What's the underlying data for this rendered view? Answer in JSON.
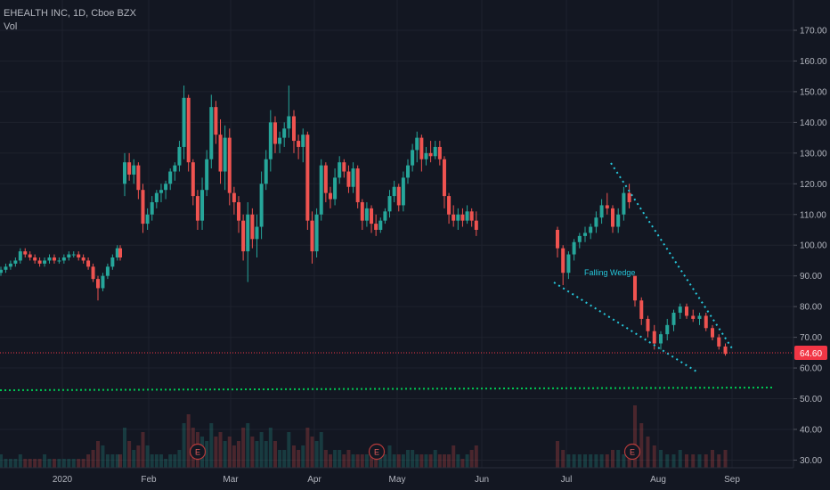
{
  "header": {
    "title": "EHEALTH INC, 1D, Cboe BZX",
    "indicator": "Vol"
  },
  "colors": {
    "background": "#131722",
    "grid": "#1e222d",
    "up": "#26a69a",
    "down": "#ef5350",
    "text": "#b2b5be",
    "pattern": "#26c6da",
    "support": "#00c853",
    "price_line": "#f23645"
  },
  "price_label": "64.60",
  "annotation": "Falling Wedge",
  "earnings_markers": [
    {
      "label": "E",
      "date": "Feb 20"
    },
    {
      "label": "E",
      "date": "Apr 30"
    },
    {
      "label": "E",
      "date": "Jul 23"
    }
  ],
  "chart_data": {
    "type": "candlestick",
    "y_axis": {
      "ticks": [
        "170.00",
        "160.00",
        "150.00",
        "140.00",
        "130.00",
        "120.00",
        "110.00",
        "100.00",
        "90.00",
        "80.00",
        "70.00",
        "60.00",
        "50.00",
        "40.00",
        "30.00"
      ],
      "range": [
        27,
        177
      ]
    },
    "x_axis": {
      "ticks": [
        "2020",
        "Feb",
        "Mar",
        "Apr",
        "May",
        "Jun",
        "Jul",
        "Aug",
        "Sep"
      ]
    },
    "last_price": 64.6,
    "support_level": 52.5,
    "candles": [
      {
        "o": 91,
        "h": 93,
        "l": 90,
        "c": 92
      },
      {
        "o": 92,
        "h": 94,
        "l": 91,
        "c": 93
      },
      {
        "o": 93,
        "h": 95,
        "l": 92,
        "c": 94
      },
      {
        "o": 94,
        "h": 96,
        "l": 93,
        "c": 95
      },
      {
        "o": 95,
        "h": 99,
        "l": 94,
        "c": 98
      },
      {
        "o": 98,
        "h": 99,
        "l": 96,
        "c": 97
      },
      {
        "o": 97,
        "h": 98,
        "l": 95,
        "c": 96
      },
      {
        "o": 96,
        "h": 97,
        "l": 94,
        "c": 95
      },
      {
        "o": 95,
        "h": 96,
        "l": 93,
        "c": 94
      },
      {
        "o": 94,
        "h": 96,
        "l": 93,
        "c": 95
      },
      {
        "o": 95,
        "h": 97,
        "l": 94,
        "c": 96
      },
      {
        "o": 96,
        "h": 97,
        "l": 94,
        "c": 95
      },
      {
        "o": 95,
        "h": 96,
        "l": 94,
        "c": 95
      },
      {
        "o": 95,
        "h": 97,
        "l": 94,
        "c": 96
      },
      {
        "o": 96,
        "h": 98,
        "l": 95,
        "c": 97
      },
      {
        "o": 97,
        "h": 98,
        "l": 96,
        "c": 97
      },
      {
        "o": 97,
        "h": 98,
        "l": 95,
        "c": 96
      },
      {
        "o": 96,
        "h": 97,
        "l": 94,
        "c": 95
      },
      {
        "o": 95,
        "h": 96,
        "l": 92,
        "c": 93
      },
      {
        "o": 93,
        "h": 94,
        "l": 88,
        "c": 89
      },
      {
        "o": 89,
        "h": 90,
        "l": 82,
        "c": 86
      },
      {
        "o": 86,
        "h": 91,
        "l": 85,
        "c": 90
      },
      {
        "o": 90,
        "h": 94,
        "l": 89,
        "c": 93
      },
      {
        "o": 93,
        "h": 97,
        "l": 92,
        "c": 96
      },
      {
        "o": 96,
        "h": 100,
        "l": 95,
        "c": 99
      },
      {
        "o": 99,
        "h": 100,
        "l": 95,
        "c": 96
      },
      {
        "o": 120,
        "h": 130,
        "l": 116,
        "c": 127
      },
      {
        "o": 127,
        "h": 130,
        "l": 121,
        "c": 123
      },
      {
        "o": 123,
        "h": 128,
        "l": 120,
        "c": 126
      },
      {
        "o": 126,
        "h": 127,
        "l": 115,
        "c": 118
      },
      {
        "o": 118,
        "h": 120,
        "l": 104,
        "c": 107
      },
      {
        "o": 107,
        "h": 112,
        "l": 105,
        "c": 110
      },
      {
        "o": 110,
        "h": 116,
        "l": 108,
        "c": 114
      },
      {
        "o": 114,
        "h": 118,
        "l": 112,
        "c": 117
      },
      {
        "o": 117,
        "h": 120,
        "l": 114,
        "c": 118
      },
      {
        "o": 118,
        "h": 121,
        "l": 115,
        "c": 120
      },
      {
        "o": 120,
        "h": 125,
        "l": 118,
        "c": 124
      },
      {
        "o": 124,
        "h": 127,
        "l": 121,
        "c": 126
      },
      {
        "o": 126,
        "h": 134,
        "l": 124,
        "c": 132
      },
      {
        "o": 132,
        "h": 152,
        "l": 128,
        "c": 148
      },
      {
        "o": 148,
        "h": 149,
        "l": 124,
        "c": 127
      },
      {
        "o": 127,
        "h": 128,
        "l": 113,
        "c": 116
      },
      {
        "o": 116,
        "h": 118,
        "l": 105,
        "c": 108
      },
      {
        "o": 108,
        "h": 122,
        "l": 105,
        "c": 118
      },
      {
        "o": 118,
        "h": 131,
        "l": 116,
        "c": 128
      },
      {
        "o": 128,
        "h": 149,
        "l": 125,
        "c": 145
      },
      {
        "o": 145,
        "h": 147,
        "l": 133,
        "c": 136
      },
      {
        "o": 136,
        "h": 141,
        "l": 120,
        "c": 124
      },
      {
        "o": 124,
        "h": 139,
        "l": 118,
        "c": 135
      },
      {
        "o": 135,
        "h": 138,
        "l": 113,
        "c": 117
      },
      {
        "o": 117,
        "h": 119,
        "l": 110,
        "c": 114
      },
      {
        "o": 114,
        "h": 116,
        "l": 104,
        "c": 108
      },
      {
        "o": 108,
        "h": 110,
        "l": 95,
        "c": 98
      },
      {
        "o": 98,
        "h": 114,
        "l": 88,
        "c": 110
      },
      {
        "o": 110,
        "h": 112,
        "l": 99,
        "c": 102
      },
      {
        "o": 102,
        "h": 110,
        "l": 96,
        "c": 106
      },
      {
        "o": 106,
        "h": 124,
        "l": 102,
        "c": 120
      },
      {
        "o": 120,
        "h": 131,
        "l": 118,
        "c": 128
      },
      {
        "o": 128,
        "h": 144,
        "l": 124,
        "c": 140
      },
      {
        "o": 140,
        "h": 142,
        "l": 130,
        "c": 133
      },
      {
        "o": 133,
        "h": 137,
        "l": 130,
        "c": 135
      },
      {
        "o": 135,
        "h": 140,
        "l": 132,
        "c": 138
      },
      {
        "o": 138,
        "h": 152,
        "l": 135,
        "c": 142
      },
      {
        "o": 142,
        "h": 144,
        "l": 130,
        "c": 134
      },
      {
        "o": 134,
        "h": 136,
        "l": 128,
        "c": 132
      },
      {
        "o": 132,
        "h": 138,
        "l": 127,
        "c": 136
      },
      {
        "o": 136,
        "h": 137,
        "l": 105,
        "c": 108
      },
      {
        "o": 108,
        "h": 111,
        "l": 94,
        "c": 98
      },
      {
        "o": 98,
        "h": 112,
        "l": 96,
        "c": 110
      },
      {
        "o": 110,
        "h": 128,
        "l": 108,
        "c": 126
      },
      {
        "o": 126,
        "h": 127,
        "l": 114,
        "c": 117
      },
      {
        "o": 117,
        "h": 119,
        "l": 112,
        "c": 115
      },
      {
        "o": 115,
        "h": 125,
        "l": 113,
        "c": 122
      },
      {
        "o": 122,
        "h": 129,
        "l": 120,
        "c": 127
      },
      {
        "o": 127,
        "h": 128,
        "l": 122,
        "c": 124
      },
      {
        "o": 124,
        "h": 126,
        "l": 117,
        "c": 119
      },
      {
        "o": 119,
        "h": 127,
        "l": 117,
        "c": 125
      },
      {
        "o": 125,
        "h": 126,
        "l": 112,
        "c": 114
      },
      {
        "o": 114,
        "h": 115,
        "l": 105,
        "c": 108
      },
      {
        "o": 108,
        "h": 114,
        "l": 106,
        "c": 112
      },
      {
        "o": 112,
        "h": 113,
        "l": 104,
        "c": 107
      },
      {
        "o": 107,
        "h": 110,
        "l": 103,
        "c": 105
      },
      {
        "o": 105,
        "h": 109,
        "l": 104,
        "c": 108
      },
      {
        "o": 108,
        "h": 112,
        "l": 107,
        "c": 111
      },
      {
        "o": 111,
        "h": 118,
        "l": 109,
        "c": 116
      },
      {
        "o": 116,
        "h": 121,
        "l": 114,
        "c": 119
      },
      {
        "o": 119,
        "h": 120,
        "l": 111,
        "c": 113
      },
      {
        "o": 113,
        "h": 124,
        "l": 111,
        "c": 122
      },
      {
        "o": 122,
        "h": 128,
        "l": 120,
        "c": 126
      },
      {
        "o": 126,
        "h": 133,
        "l": 124,
        "c": 131
      },
      {
        "o": 131,
        "h": 137,
        "l": 127,
        "c": 135
      },
      {
        "o": 135,
        "h": 136,
        "l": 124,
        "c": 128
      },
      {
        "o": 128,
        "h": 132,
        "l": 126,
        "c": 130
      },
      {
        "o": 130,
        "h": 134,
        "l": 127,
        "c": 129
      },
      {
        "o": 129,
        "h": 134,
        "l": 128,
        "c": 132
      },
      {
        "o": 132,
        "h": 134,
        "l": 126,
        "c": 128
      },
      {
        "o": 128,
        "h": 129,
        "l": 112,
        "c": 116
      },
      {
        "o": 116,
        "h": 117,
        "l": 107,
        "c": 110
      },
      {
        "o": 110,
        "h": 113,
        "l": 106,
        "c": 108
      },
      {
        "o": 108,
        "h": 112,
        "l": 105,
        "c": 110
      },
      {
        "o": 110,
        "h": 112,
        "l": 106,
        "c": 108
      },
      {
        "o": 108,
        "h": 113,
        "l": 107,
        "c": 111
      },
      {
        "o": 111,
        "h": 112,
        "l": 106,
        "c": 108
      },
      {
        "o": 108,
        "h": 111,
        "l": 103,
        "c": 105
      },
      {
        "o": 105,
        "h": 106,
        "l": 96,
        "c": 99
      },
      {
        "o": 99,
        "h": 100,
        "l": 87,
        "c": 91
      },
      {
        "o": 91,
        "h": 98,
        "l": 89,
        "c": 97
      },
      {
        "o": 97,
        "h": 102,
        "l": 95,
        "c": 101
      },
      {
        "o": 101,
        "h": 104,
        "l": 99,
        "c": 103
      },
      {
        "o": 103,
        "h": 106,
        "l": 101,
        "c": 104
      },
      {
        "o": 104,
        "h": 107,
        "l": 102,
        "c": 106
      },
      {
        "o": 106,
        "h": 111,
        "l": 104,
        "c": 109
      },
      {
        "o": 109,
        "h": 115,
        "l": 107,
        "c": 113
      },
      {
        "o": 113,
        "h": 117,
        "l": 110,
        "c": 112
      },
      {
        "o": 112,
        "h": 113,
        "l": 104,
        "c": 106
      },
      {
        "o": 106,
        "h": 112,
        "l": 104,
        "c": 110
      },
      {
        "o": 110,
        "h": 119,
        "l": 108,
        "c": 117
      },
      {
        "o": 117,
        "h": 120,
        "l": 112,
        "c": 114
      },
      {
        "o": 90,
        "h": 90,
        "l": 80,
        "c": 82
      },
      {
        "o": 82,
        "h": 83,
        "l": 74,
        "c": 76
      },
      {
        "o": 76,
        "h": 77,
        "l": 70,
        "c": 72
      },
      {
        "o": 72,
        "h": 74,
        "l": 66,
        "c": 68
      },
      {
        "o": 68,
        "h": 72,
        "l": 66,
        "c": 71
      },
      {
        "o": 71,
        "h": 76,
        "l": 69,
        "c": 74
      },
      {
        "o": 74,
        "h": 79,
        "l": 72,
        "c": 78
      },
      {
        "o": 78,
        "h": 81,
        "l": 76,
        "c": 80
      },
      {
        "o": 80,
        "h": 81,
        "l": 76,
        "c": 77
      },
      {
        "o": 77,
        "h": 79,
        "l": 75,
        "c": 76
      },
      {
        "o": 76,
        "h": 78,
        "l": 74,
        "c": 77
      },
      {
        "o": 77,
        "h": 78,
        "l": 72,
        "c": 73
      },
      {
        "o": 73,
        "h": 74,
        "l": 69,
        "c": 70
      },
      {
        "o": 70,
        "h": 71,
        "l": 66,
        "c": 67
      },
      {
        "o": 67,
        "h": 68,
        "l": 64,
        "c": 64.6
      }
    ],
    "volume": [
      3,
      2,
      2,
      2,
      3,
      2,
      2,
      2,
      2,
      3,
      2,
      2,
      2,
      2,
      2,
      2,
      2,
      2,
      3,
      4,
      6,
      5,
      3,
      3,
      3,
      3,
      9,
      6,
      4,
      5,
      8,
      5,
      3,
      3,
      3,
      2,
      3,
      3,
      4,
      10,
      12,
      9,
      8,
      7,
      6,
      10,
      7,
      8,
      6,
      7,
      5,
      6,
      9,
      10,
      7,
      6,
      8,
      6,
      9,
      6,
      4,
      4,
      8,
      5,
      4,
      5,
      9,
      7,
      6,
      8,
      4,
      3,
      4,
      4,
      3,
      4,
      3,
      3,
      3,
      3,
      3,
      3,
      3,
      3,
      5,
      3,
      3,
      3,
      4,
      4,
      3,
      3,
      3,
      3,
      4,
      3,
      3,
      3,
      5,
      3,
      2,
      3,
      4,
      5,
      6,
      4,
      3,
      3,
      3,
      3,
      3,
      3,
      3,
      3,
      4,
      4,
      3,
      3,
      14,
      10,
      7,
      5,
      4,
      3,
      3,
      4,
      3,
      3,
      3,
      3,
      4,
      3,
      4
    ]
  }
}
